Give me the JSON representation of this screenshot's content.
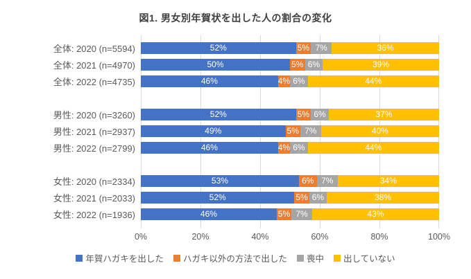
{
  "title": "図1. 男女別年賀状を出した人の割合の変化",
  "chart_data": {
    "type": "bar",
    "orientation": "horizontal",
    "stacked": true,
    "title": "図1. 男女別年賀状を出した人の割合の変化",
    "categories": [
      "全体: 2020 (n=5594)",
      "全体: 2021 (n=4970)",
      "全体: 2022 (n=4735)",
      "男性: 2020 (n=3260)",
      "男性: 2021 (n=2937)",
      "男性: 2022 (n=2799)",
      "女性: 2020 (n=2334)",
      "女性: 2021 (n=2033)",
      "女性: 2022 (n=1936)"
    ],
    "groups": [
      [
        0,
        1,
        2
      ],
      [
        3,
        4,
        5
      ],
      [
        6,
        7,
        8
      ]
    ],
    "series": [
      {
        "name": "年賀ハガキを出した",
        "color": "#4472C4",
        "values": [
          52,
          50,
          46,
          52,
          49,
          46,
          53,
          52,
          46
        ]
      },
      {
        "name": "ハガキ以外の方法で出した",
        "color": "#ED7D31",
        "values": [
          5,
          5,
          4,
          5,
          5,
          4,
          6,
          5,
          5
        ]
      },
      {
        "name": "喪中",
        "color": "#A5A5A5",
        "values": [
          7,
          6,
          6,
          6,
          7,
          6,
          7,
          6,
          7
        ]
      },
      {
        "name": "出していない",
        "color": "#FFC000",
        "values": [
          36,
          39,
          44,
          37,
          40,
          44,
          34,
          38,
          43
        ]
      }
    ],
    "value_suffix": "%",
    "xlim": [
      0,
      100
    ],
    "x_tick_labels": [
      "0%",
      "20%",
      "40%",
      "60%",
      "80%",
      "100%"
    ],
    "grid": true,
    "legend_position": "bottom"
  }
}
